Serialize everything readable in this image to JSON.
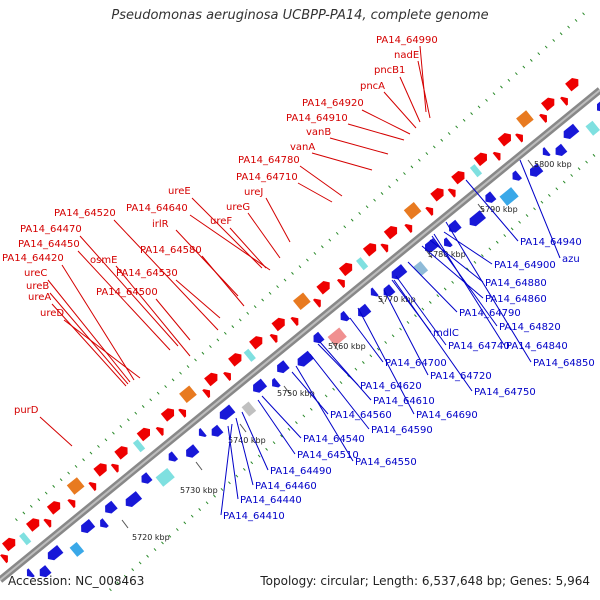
{
  "title": "Pseudomonas aeruginosa UCBPP-PA14, complete genome",
  "footer": {
    "accession": "Accession: NC_008463",
    "summary": "Topology: circular; Length: 6,537,648 bp; Genes: 5,964"
  },
  "scale_labels": [
    "5720 kbp",
    "5730 kbp",
    "5740 kbp",
    "5750 kbp",
    "5760 kbp",
    "5770 kbp",
    "5780 kbp",
    "5790 kbp",
    "5800 kbp"
  ],
  "forward_labels": [
    "PA14_64990",
    "nadE",
    "pncB1",
    "pncA",
    "PA14_64920",
    "PA14_64910",
    "vanB",
    "vanA",
    "PA14_64780",
    "PA14_64710",
    "ureE",
    "ureJ",
    "ureG",
    "PA14_64640",
    "ureF",
    "PA14_64520",
    "irlR",
    "PA14_64470",
    "PA14_64450",
    "PA14_64580",
    "osmE",
    "PA14_64420",
    "PA14_64530",
    "ureC",
    "ureB",
    "PA14_64500",
    "ureA",
    "ureD",
    "purD"
  ],
  "reverse_labels": [
    "PA14_64940",
    "azu",
    "PA14_64900",
    "PA14_64880",
    "PA14_64860",
    "PA14_64820",
    "PA14_64840",
    "PA14_64850",
    "PA14_64790",
    "mdlC",
    "PA14_64740",
    "PA14_64720",
    "PA14_64700",
    "PA14_64750",
    "PA14_64620",
    "PA14_64610",
    "PA14_64690",
    "PA14_64560",
    "PA14_64590",
    "PA14_64540",
    "PA14_64510",
    "PA14_64550",
    "PA14_64490",
    "PA14_64460",
    "PA14_64440",
    "PA14_64410"
  ],
  "colors": {
    "forward_label": "#d40000",
    "reverse_label": "#0000c8",
    "backbone": "#888888",
    "forward_gene": "#ee0000",
    "reverse_gene": "#1818d8",
    "gc_dots": "#2a8a2a"
  }
}
